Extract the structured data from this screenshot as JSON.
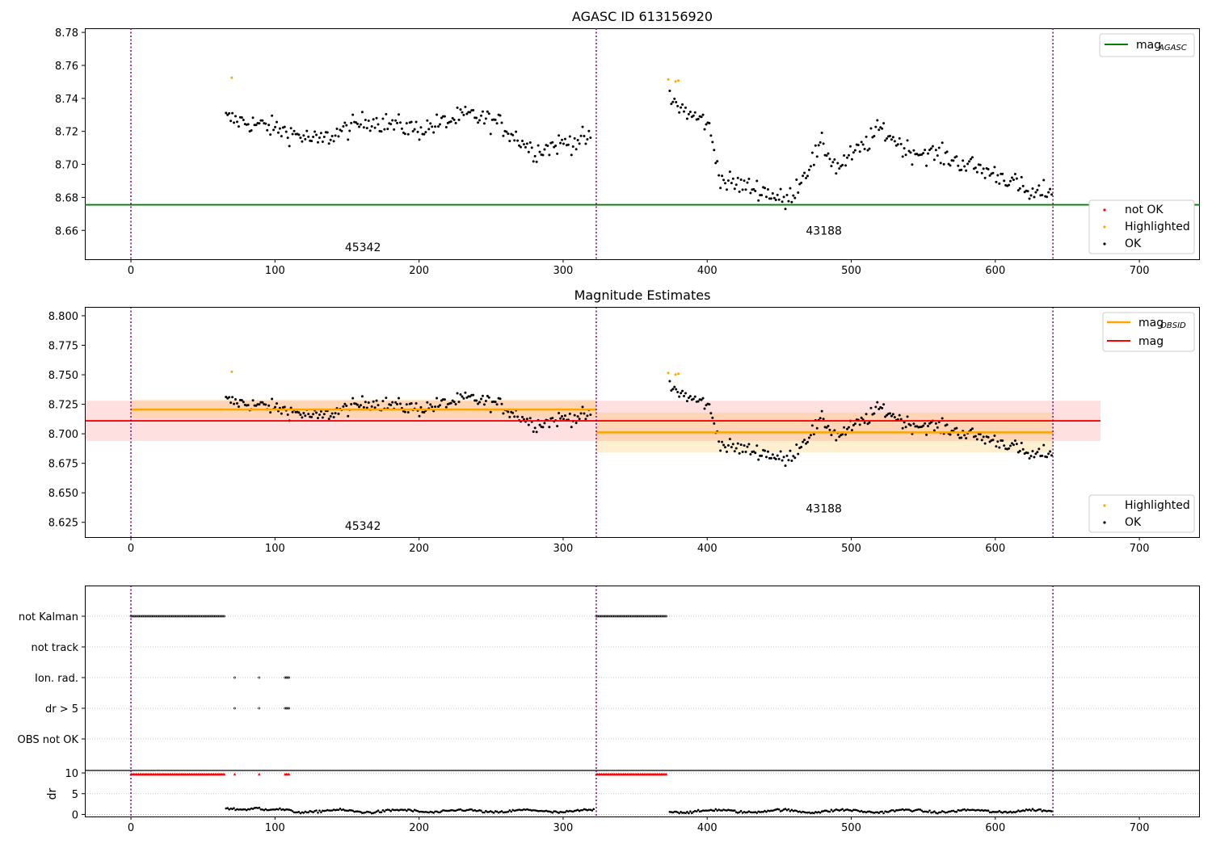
{
  "chart_data": [
    {
      "type": "scatter",
      "title": "AGASC ID 613156920",
      "xlim": [
        -32,
        742
      ],
      "ylim": [
        8.6425,
        8.7825
      ],
      "x_ticks": [
        "0",
        "100",
        "200",
        "300",
        "400",
        "500",
        "600",
        "700"
      ],
      "y_ticks": [
        "8.66",
        "8.68",
        "8.70",
        "8.72",
        "8.74",
        "8.76",
        "8.78"
      ],
      "obsid_boundaries": [
        0,
        323,
        640
      ],
      "obsid_labels": [
        {
          "x": 161,
          "y": 8.6475,
          "text": "45342"
        },
        {
          "x": 481,
          "y": 8.6575,
          "text": "43188"
        }
      ],
      "reference_line": {
        "name": "mag_AGASC",
        "y": 8.6755,
        "color": "#008000"
      },
      "legend_top": [
        {
          "label": "mag",
          "sub": "AGASC",
          "color": "#008000"
        }
      ],
      "legend_bottom": [
        {
          "label": "not OK",
          "color": "#ff0000"
        },
        {
          "label": "Highlighted",
          "color": "#ffa500"
        },
        {
          "label": "OK",
          "color": "#000000"
        }
      ],
      "highlighted_points": [
        [
          70,
          8.7525
        ],
        [
          373,
          8.7515
        ],
        [
          378,
          8.7502
        ],
        [
          380,
          8.7508
        ]
      ]
    },
    {
      "type": "scatter",
      "title": "Magnitude Estimates",
      "xlim": [
        -32,
        742
      ],
      "ylim": [
        8.6125,
        8.8075
      ],
      "x_ticks": [
        "0",
        "100",
        "200",
        "300",
        "400",
        "500",
        "600",
        "700"
      ],
      "y_ticks": [
        "8.625",
        "8.650",
        "8.675",
        "8.700",
        "8.725",
        "8.750",
        "8.775",
        "8.800"
      ],
      "obsid_labels": [
        {
          "x": 161,
          "y": 8.6185,
          "text": "45342"
        },
        {
          "x": 481,
          "y": 8.6335,
          "text": "43188"
        }
      ],
      "mag": {
        "y": 8.711,
        "band": [
          8.694,
          8.728
        ],
        "x": [
          -32,
          673
        ],
        "color": "#ff0000"
      },
      "mag_obsid": [
        {
          "x": [
            0,
            323
          ],
          "y": 8.7205,
          "band": [
            8.713,
            8.729
          ]
        },
        {
          "x": [
            323,
            640
          ],
          "y": 8.7012,
          "band": [
            8.684,
            8.718
          ]
        }
      ],
      "legend_top": [
        {
          "label": "mag",
          "sub": "OBSID",
          "color": "#ffa500"
        },
        {
          "label": "mag",
          "sub": "",
          "color": "#ff0000"
        }
      ],
      "legend_bottom": [
        {
          "label": "Highlighted",
          "color": "#ffa500"
        },
        {
          "label": "OK",
          "color": "#000000"
        }
      ]
    },
    {
      "type": "scatter",
      "title": "",
      "categories": [
        "not Kalman",
        "not track",
        "Ion. rad.",
        "dr > 5",
        "OBS not OK"
      ],
      "flag_ranges": {
        "not Kalman": [
          [
            0,
            65
          ],
          [
            323,
            372
          ]
        ],
        "not track": [],
        "Ion. rad.": [
          [
            72,
            72
          ],
          [
            89,
            89
          ],
          [
            107,
            110
          ]
        ],
        "dr > 5": [
          [
            72,
            72
          ],
          [
            89,
            89
          ],
          [
            107,
            110
          ]
        ],
        "OBS not OK": []
      }
    },
    {
      "type": "scatter",
      "ylabel": "dr",
      "ylim": [
        -0.5,
        10.6
      ],
      "y_ticks": [
        "0",
        "5",
        "10"
      ],
      "x_ticks": [
        "0",
        "100",
        "200",
        "300",
        "400",
        "500",
        "600",
        "700"
      ],
      "capped_value": 9.7,
      "capped_ranges": [
        [
          0,
          65
        ],
        [
          72,
          72
        ],
        [
          89,
          89
        ],
        [
          107,
          110
        ],
        [
          323,
          372
        ]
      ]
    }
  ]
}
